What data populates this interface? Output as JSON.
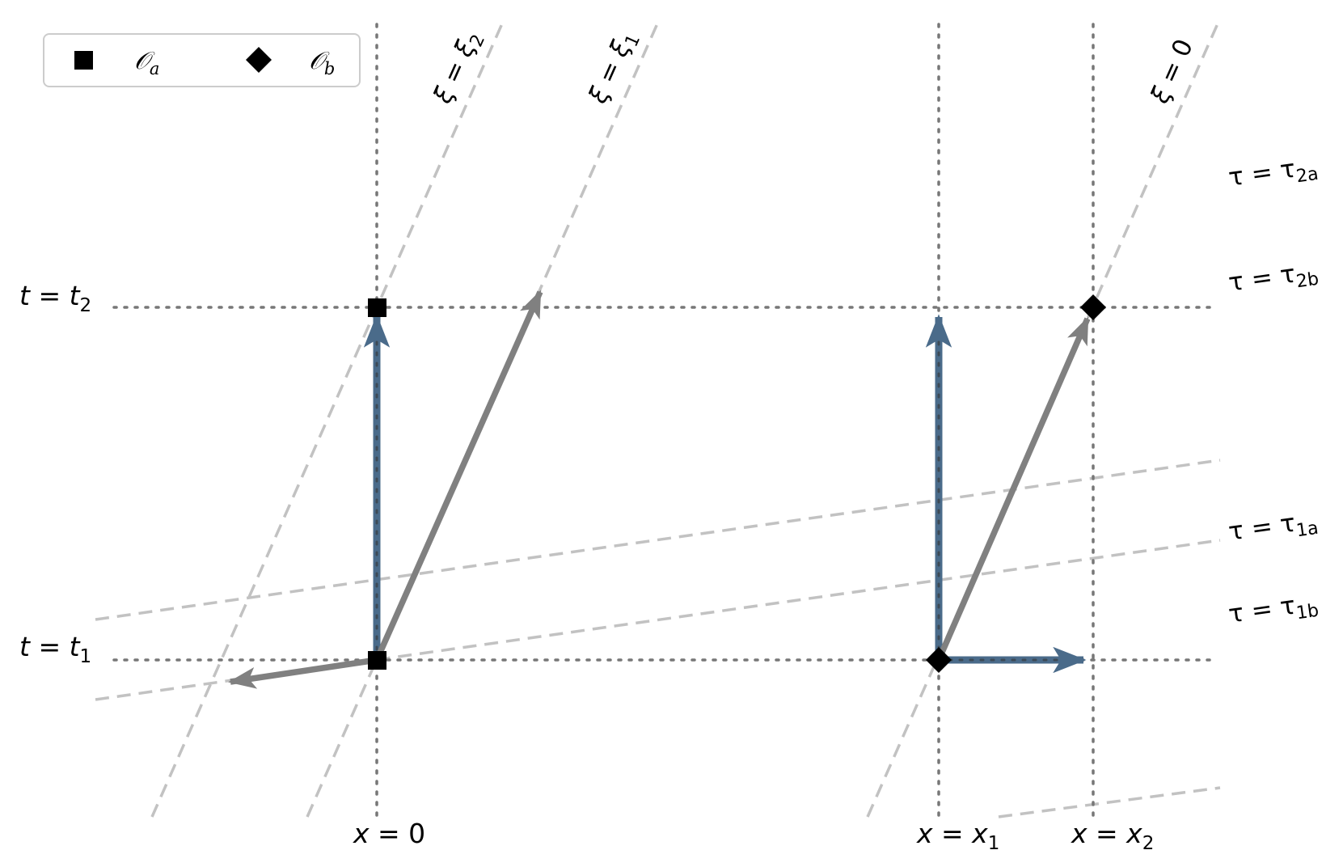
{
  "colors": {
    "background": "#ffffff",
    "dotted_grid": "#777777",
    "dashed_lines": "#c2c2c2",
    "gray_arrow": "#808080",
    "blue_arrow": "#4a6b8a",
    "markers": "#000000",
    "legend_border": "#cccccc"
  },
  "legend": {
    "items": [
      {
        "marker": "square",
        "symbol": "𝒪",
        "subscript": "a"
      },
      {
        "marker": "diamond",
        "symbol": "𝒪",
        "subscript": "b"
      }
    ]
  },
  "left_labels": {
    "t2": {
      "var": "t",
      "eq": " = ",
      "val": "t",
      "sub": "2"
    },
    "t1": {
      "var": "t",
      "eq": " = ",
      "val": "t",
      "sub": "1"
    }
  },
  "bottom_labels": {
    "x0": {
      "var": "x",
      "eq": " = ",
      "val": "0",
      "sub": ""
    },
    "x1": {
      "var": "x",
      "eq": " = ",
      "val": "x",
      "sub": "1"
    },
    "x2": {
      "var": "x",
      "eq": " = ",
      "val": "x",
      "sub": "2"
    }
  },
  "right_labels": {
    "tau2a": {
      "var": "τ",
      "eq": " = ",
      "val": "τ",
      "sub": "2a"
    },
    "tau2b": {
      "var": "τ",
      "eq": " = ",
      "val": "τ",
      "sub": "2b"
    },
    "tau1a": {
      "var": "τ",
      "eq": " = ",
      "val": "τ",
      "sub": "1a"
    },
    "tau1b": {
      "var": "τ",
      "eq": " = ",
      "val": "τ",
      "sub": "1b"
    }
  },
  "xi_labels": {
    "xi2": {
      "var": "ξ",
      "eq": " = ",
      "val": "ξ",
      "sub": "2"
    },
    "xi1": {
      "var": "ξ",
      "eq": " = ",
      "val": "ξ",
      "sub": "1"
    },
    "xi0": {
      "var": "ξ",
      "eq": " = ",
      "val": "0",
      "sub": ""
    }
  }
}
